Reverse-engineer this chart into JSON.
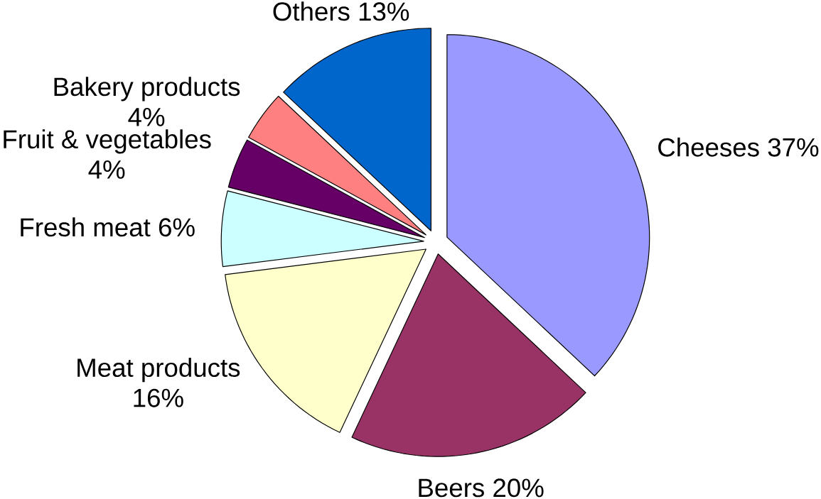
{
  "chart_data": {
    "type": "pie",
    "categories": [
      "Cheeses",
      "Beers",
      "Meat products",
      "Fresh meat",
      "Fruit & vegetables",
      "Bakery products",
      "Others"
    ],
    "values": [
      37,
      20,
      16,
      6,
      4,
      4,
      13
    ],
    "value_labels": [
      "37%",
      "20%",
      "16%",
      "6%",
      "4%",
      "4%",
      "13%"
    ],
    "colors": [
      "#9999ff",
      "#993366",
      "#ffffcc",
      "#ccffff",
      "#660066",
      "#ff8080",
      "#0066cc"
    ]
  }
}
